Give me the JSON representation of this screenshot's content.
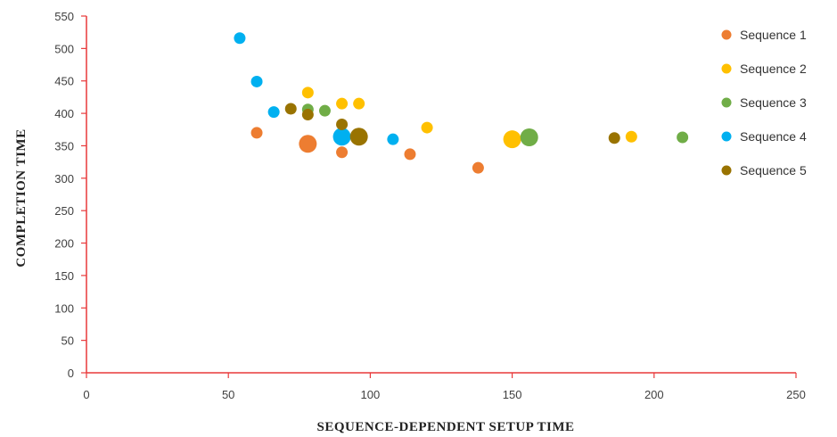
{
  "chart_data": {
    "type": "scatter",
    "xlabel": "SEQUENCE-DEPENDENT  SETUP  TIME",
    "ylabel": "COMPLETION  TIME",
    "xlim": [
      0,
      250
    ],
    "ylim": [
      0,
      550
    ],
    "x_ticks": [
      "0",
      "50",
      "100",
      "150",
      "200",
      "250"
    ],
    "y_ticks": [
      "0",
      "50",
      "100",
      "150",
      "200",
      "250",
      "300",
      "350",
      "400",
      "450",
      "500",
      "550"
    ],
    "axis_color": "#e8393a",
    "grid": false,
    "legend_position": "right",
    "series": [
      {
        "name": "Sequence 1",
        "color": "#ed7d31",
        "points": [
          {
            "x": 60,
            "y": 370,
            "size": 1
          },
          {
            "x": 78,
            "y": 353,
            "size": 2
          },
          {
            "x": 90,
            "y": 340,
            "size": 1
          },
          {
            "x": 114,
            "y": 337,
            "size": 1
          },
          {
            "x": 138,
            "y": 316,
            "size": 1
          }
        ]
      },
      {
        "name": "Sequence 2",
        "color": "#ffc000",
        "points": [
          {
            "x": 78,
            "y": 432,
            "size": 1
          },
          {
            "x": 90,
            "y": 415,
            "size": 1
          },
          {
            "x": 96,
            "y": 415,
            "size": 1
          },
          {
            "x": 120,
            "y": 378,
            "size": 1
          },
          {
            "x": 150,
            "y": 360,
            "size": 2
          },
          {
            "x": 192,
            "y": 364,
            "size": 1
          }
        ]
      },
      {
        "name": "Sequence 3",
        "color": "#70ad47",
        "points": [
          {
            "x": 78,
            "y": 406,
            "size": 1
          },
          {
            "x": 84,
            "y": 404,
            "size": 1
          },
          {
            "x": 156,
            "y": 363,
            "size": 2
          },
          {
            "x": 210,
            "y": 363,
            "size": 1
          }
        ]
      },
      {
        "name": "Sequence 4",
        "color": "#00b0f0",
        "points": [
          {
            "x": 54,
            "y": 516,
            "size": 1
          },
          {
            "x": 60,
            "y": 449,
            "size": 1
          },
          {
            "x": 66,
            "y": 402,
            "size": 1
          },
          {
            "x": 90,
            "y": 364,
            "size": 2
          },
          {
            "x": 108,
            "y": 360,
            "size": 1
          }
        ]
      },
      {
        "name": "Sequence 5",
        "color": "#997300",
        "points": [
          {
            "x": 72,
            "y": 407,
            "size": 1
          },
          {
            "x": 78,
            "y": 398,
            "size": 1
          },
          {
            "x": 90,
            "y": 383,
            "size": 1
          },
          {
            "x": 96,
            "y": 364,
            "size": 2
          },
          {
            "x": 186,
            "y": 362,
            "size": 1
          }
        ]
      }
    ]
  }
}
